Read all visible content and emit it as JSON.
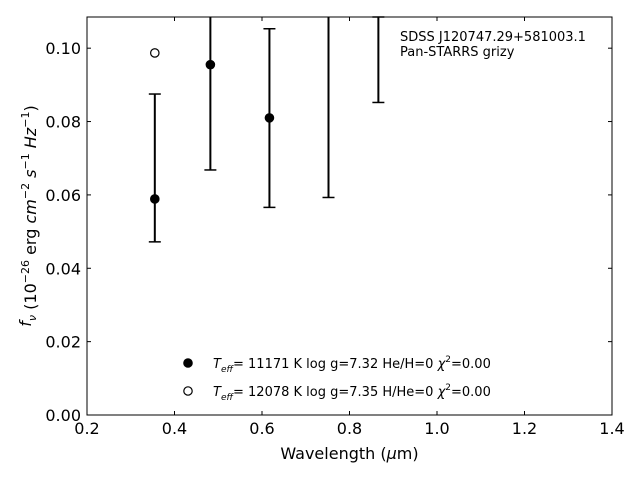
{
  "chart_data": {
    "type": "scatter",
    "xlabel": "Wavelength (μm)",
    "ylabel": "f_ν (10^-26 erg cm^-2 s^-1 Hz^-1)",
    "xlim": [
      0.2,
      1.4
    ],
    "ylim": [
      0.0,
      0.1085
    ],
    "xticks": [
      "0.2",
      "0.4",
      "0.6",
      "0.8",
      "1.0",
      "1.2",
      "1.4"
    ],
    "yticks": [
      "0.00",
      "0.02",
      "0.04",
      "0.06",
      "0.08",
      "0.10"
    ],
    "grid": false,
    "annotation": [
      "SDSS J120747.29+581003.1",
      "Pan-STARRS grizy"
    ],
    "observed": {
      "x": [
        0.355,
        0.482,
        0.617,
        0.752,
        0.866
      ],
      "y": [
        null,
        null,
        null,
        null,
        null
      ],
      "yerr_low": [
        0.0472,
        0.0668,
        0.0566,
        0.0593,
        0.0852
      ],
      "yerr_high": [
        0.0875,
        0.1085,
        0.1053,
        0.1085,
        0.1085
      ],
      "cap_low": [
        true,
        true,
        true,
        true,
        true
      ],
      "cap_high": [
        true,
        false,
        true,
        false,
        true
      ]
    },
    "series": [
      {
        "name": "Teff= 11171 K  log g=7.32  He/H=0  χ²=0.00",
        "marker": "filled-circle",
        "x": [
          0.355,
          0.482,
          0.617
        ],
        "y": [
          0.0589,
          0.0955,
          0.081
        ]
      },
      {
        "name": "Teff= 12078 K  log g=7.35  H/He=0  χ²=0.00",
        "marker": "open-circle",
        "x": [
          0.355
        ],
        "y": [
          0.0987
        ]
      }
    ],
    "legend": [
      {
        "teff": "11171",
        "rest": "= 11171 K  log g=7.32  He/H=0  ",
        "chi": "=0.00"
      },
      {
        "teff": "12078",
        "rest": "= 12078 K  log g=7.35  H/He=0  ",
        "chi": "=0.00"
      }
    ],
    "legend_position": "bottom-center"
  }
}
